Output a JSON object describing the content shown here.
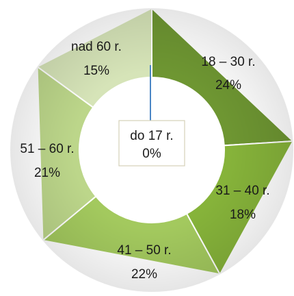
{
  "chart_data": {
    "type": "pie",
    "style": "donut",
    "categories": [
      "do 17 r.",
      "18 – 30 r.",
      "31 – 40 r.",
      "41 – 50 r.",
      "51 – 60 r.",
      "nad 60 r."
    ],
    "values": [
      0,
      24,
      18,
      22,
      21,
      15
    ],
    "value_labels": [
      "0%",
      "24%",
      "18%",
      "22%",
      "21%",
      "15%"
    ],
    "colors": [
      "#6e9632",
      "#6e9632",
      "#86b33a",
      "#a3c95e",
      "#bcd68a",
      "#d6e4b8"
    ],
    "title": "",
    "legend": "none",
    "callout": "do 17 r."
  }
}
